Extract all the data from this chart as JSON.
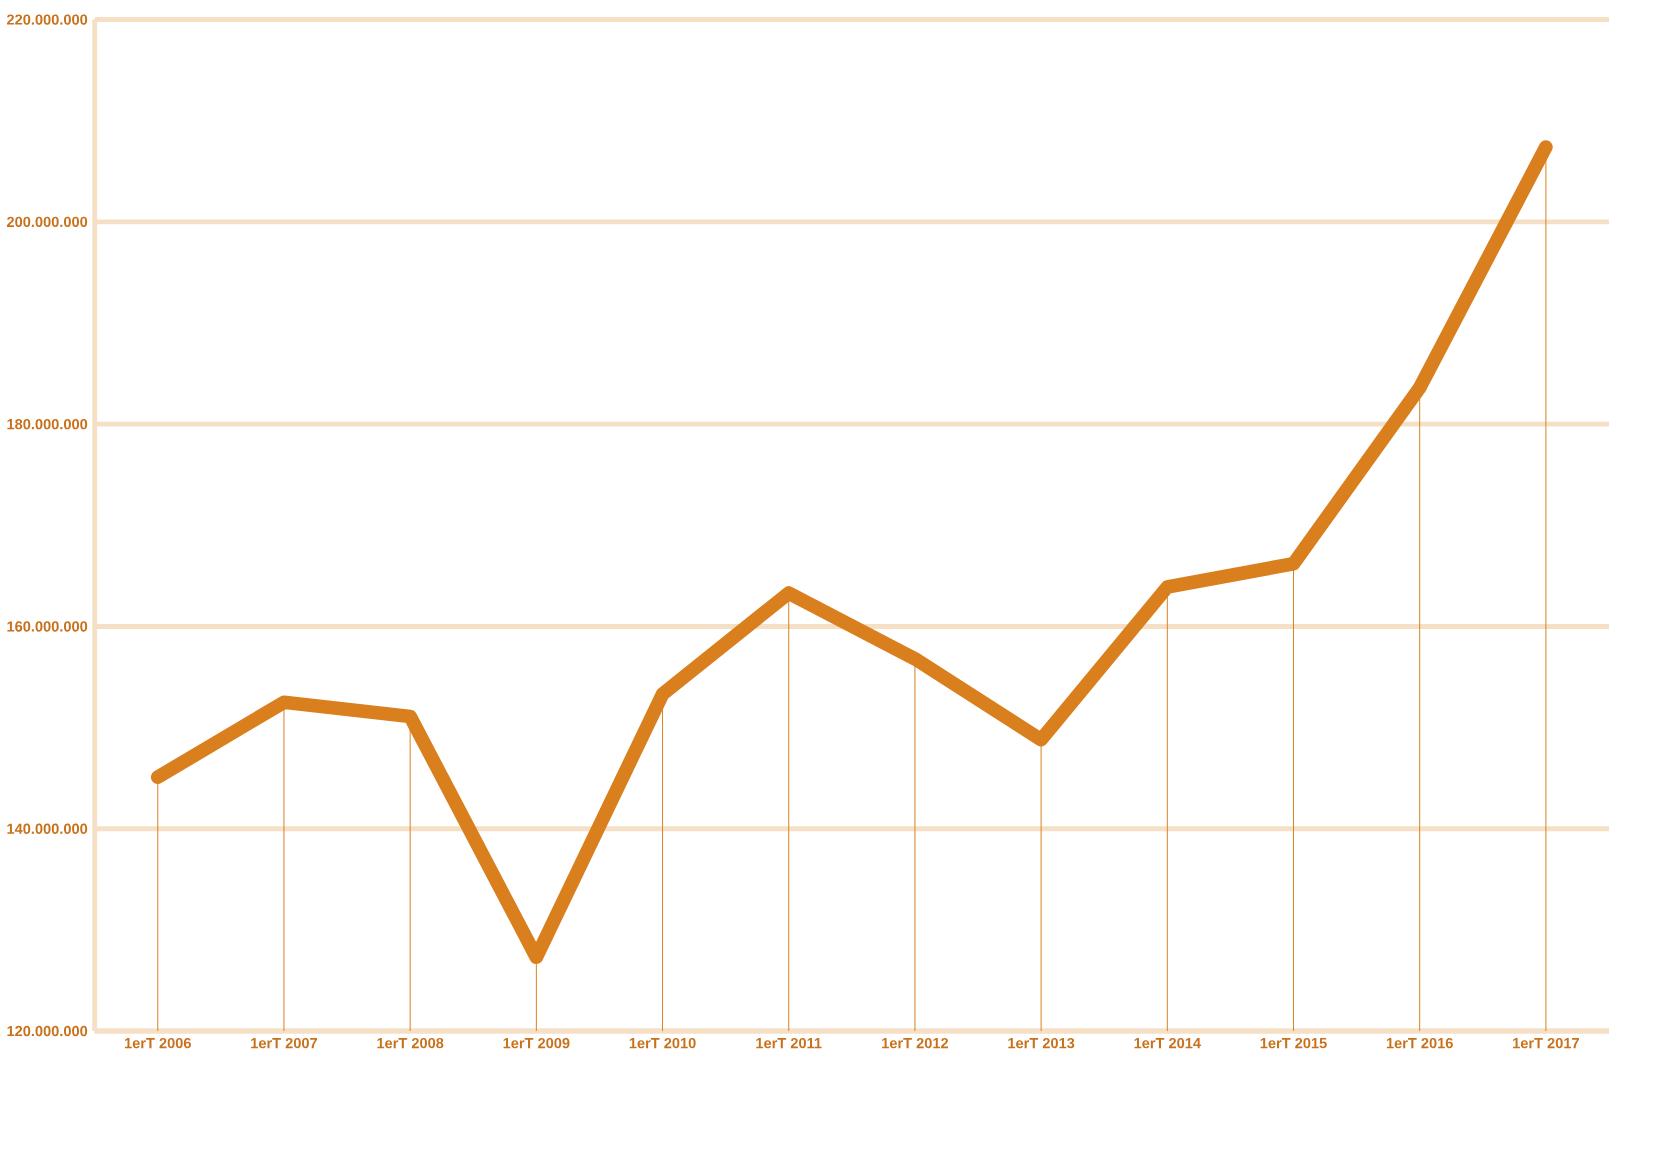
{
  "chart_data": {
    "type": "line",
    "categories": [
      "1erT 2006",
      "1erT 2007",
      "1erT 2008",
      "1erT 2009",
      "1erT 2010",
      "1erT 2011",
      "1erT 2012",
      "1erT 2013",
      "1erT 2014",
      "1erT 2015",
      "1erT 2016",
      "1erT 2017"
    ],
    "series": [
      {
        "color": "#d97f1e",
        "values": [
          145100000,
          152500000,
          151100000,
          127300000,
          153300000,
          163300000,
          156800000,
          148800000,
          163900000,
          166200000,
          183600000,
          207400000
        ],
        "errors": [
          [
            120000000,
            145100000
          ],
          [
            120000000,
            152500000
          ],
          [
            120000000,
            151100000
          ],
          [
            120000000,
            127300000
          ],
          [
            120000000,
            153300000
          ],
          [
            120000000,
            163300000
          ],
          [
            120000000,
            156800000
          ],
          [
            120000000,
            148800000
          ],
          [
            120000000,
            163900000
          ],
          [
            120000000,
            166200000
          ],
          [
            120000000,
            183600000
          ],
          [
            120000000,
            207400000
          ]
        ]
      }
    ],
    "ylim": [
      120000000,
      220000000
    ],
    "yticks": [
      {
        "value": 120000000,
        "label": "120.000.000"
      },
      {
        "value": 140000000,
        "label": "140.000.000"
      },
      {
        "value": 160000000,
        "label": "160.000.000"
      },
      {
        "value": 180000000,
        "label": "180.000.000"
      },
      {
        "value": 200000000,
        "label": "200.000.000"
      },
      {
        "value": 220000000,
        "label": "220.000.000"
      }
    ],
    "grid": "y",
    "marker": "none",
    "line_style": "solid"
  }
}
